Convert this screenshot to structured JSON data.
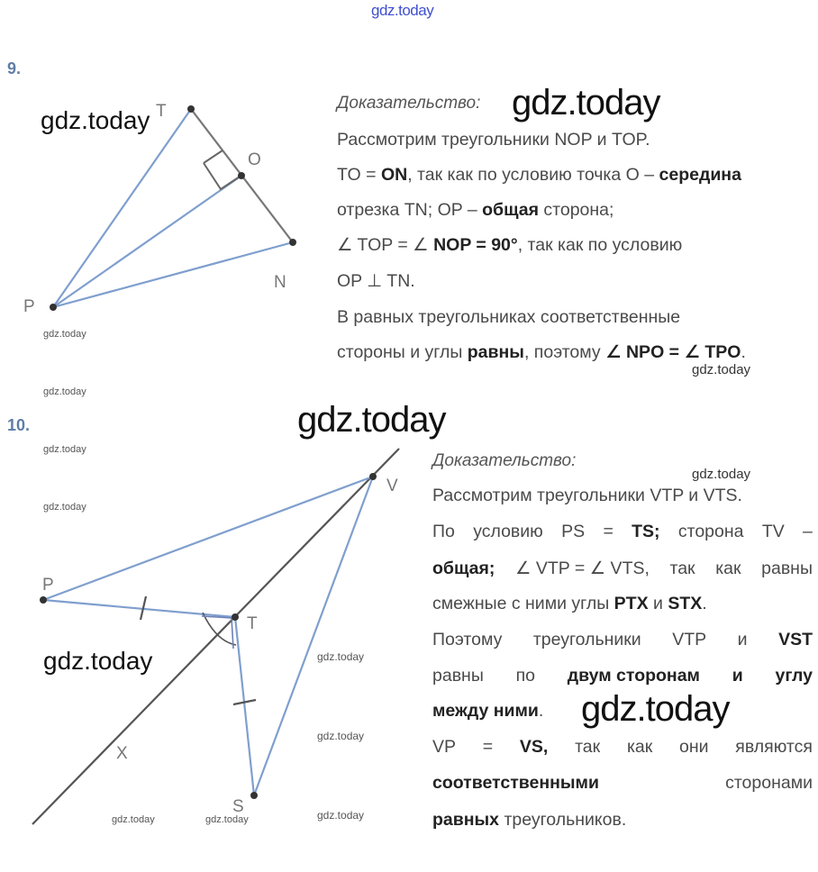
{
  "watermark": "gdz.today",
  "problem9": {
    "number": "9.",
    "proof_label": "Доказательство:",
    "lines": [
      "Рассмотрим треугольники NOP и TOP.",
      {
        "a": "TO = ",
        "b": "ON",
        "c": ", так как по условию точка O – ",
        "d": "середина"
      },
      {
        "a": "отрезка TN; OP – ",
        "b": "общая",
        "c": " сторона;"
      },
      {
        "a": "∠ TOP = ∠ ",
        "b": "NOP",
        "c": " = ",
        "d": "90°",
        "e": ", так как по условию"
      },
      "OP ⊥ TN.",
      "В равных треугольниках соответственные",
      {
        "a": "стороны и углы ",
        "b": "равны",
        "c": ", поэтому ",
        "d": "∠ NPO = ∠ TPO",
        "e": "."
      }
    ],
    "figure": {
      "labels": {
        "T": "T",
        "O": "O",
        "N": "N",
        "P": "P"
      }
    }
  },
  "problem10": {
    "number": "10.",
    "proof_label": "Доказательство:",
    "lines": [
      "Рассмотрим треугольники VTP и VTS.",
      {
        "w": [
          "По",
          "условию",
          "PS",
          "=",
          "TS;",
          "сторона",
          "TV",
          "–"
        ]
      },
      {
        "w": [
          "общая;",
          "∠ VTP = ∠ VTS,",
          "так",
          "как",
          "равны"
        ]
      },
      {
        "a": "смежные с ними углы ",
        "b": "PTX",
        "c": " и ",
        "d": "STX",
        "e": "."
      },
      {
        "w": [
          "Поэтому",
          "треугольники",
          "VTP",
          "и",
          "VST"
        ]
      },
      {
        "w": [
          "равны",
          "по",
          "двум сторонам",
          "и",
          "углу"
        ]
      },
      {
        "a": "между ними",
        "c": "."
      },
      {
        "w": [
          "VP",
          "=",
          "VS,",
          "так",
          "как",
          "они",
          "являются"
        ]
      },
      {
        "w": [
          "соответственными",
          "сторонами"
        ]
      },
      {
        "a": "равных",
        "c": " треугольников."
      }
    ],
    "figure": {
      "labels": {
        "V": "V",
        "P": "P",
        "T": "T",
        "X": "X",
        "S": "S"
      }
    }
  }
}
